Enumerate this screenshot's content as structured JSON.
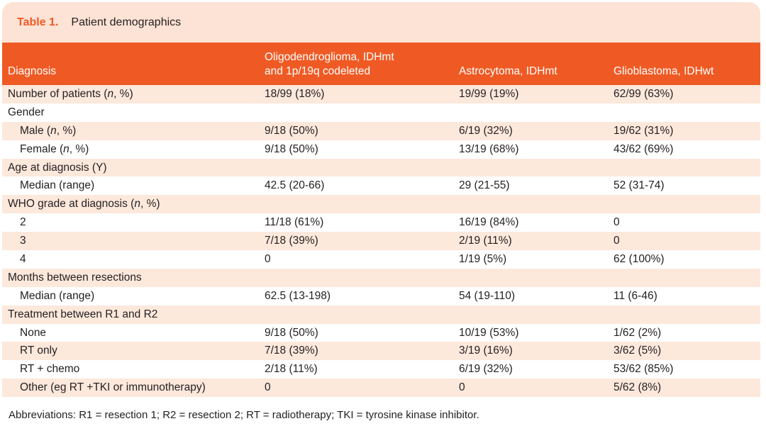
{
  "caption": {
    "number": "Table 1.",
    "title": "Patient demographics"
  },
  "header": {
    "col1": "Diagnosis",
    "col2_line1": "Oligodendroglioma, IDHmt",
    "col2_line2": "and 1p/19q codeleted",
    "col3": "Astrocytoma, IDHmt",
    "col4": "Glioblastoma, IDHwt"
  },
  "rows": [
    {
      "label": "Number of patients (",
      "italic": "n",
      "label_tail": ", %)",
      "indent": false,
      "v1": "18/99 (18%)",
      "v2": "19/99 (19%)",
      "v3": "62/99 (63%)"
    },
    {
      "label": "Gender",
      "italic": "",
      "label_tail": "",
      "indent": false,
      "v1": "",
      "v2": "",
      "v3": ""
    },
    {
      "label": "Male (",
      "italic": "n",
      "label_tail": ", %)",
      "indent": true,
      "v1": "9/18 (50%)",
      "v2": "6/19 (32%)",
      "v3": "19/62 (31%)"
    },
    {
      "label": "Female (",
      "italic": "n",
      "label_tail": ", %)",
      "indent": true,
      "v1": "9/18 (50%)",
      "v2": "13/19 (68%)",
      "v3": "43/62 (69%)"
    },
    {
      "label": "Age at diagnosis (Y)",
      "italic": "",
      "label_tail": "",
      "indent": false,
      "v1": "",
      "v2": "",
      "v3": ""
    },
    {
      "label": "Median (range)",
      "italic": "",
      "label_tail": "",
      "indent": true,
      "v1": "42.5 (20-66)",
      "v2": "29 (21-55)",
      "v3": "52 (31-74)"
    },
    {
      "label": "WHO grade at diagnosis (",
      "italic": "n",
      "label_tail": ", %)",
      "indent": false,
      "v1": "",
      "v2": "",
      "v3": ""
    },
    {
      "label": "2",
      "italic": "",
      "label_tail": "",
      "indent": true,
      "v1": "11/18 (61%)",
      "v2": "16/19 (84%)",
      "v3": "0"
    },
    {
      "label": "3",
      "italic": "",
      "label_tail": "",
      "indent": true,
      "v1": "7/18 (39%)",
      "v2": "2/19 (11%)",
      "v3": "0"
    },
    {
      "label": "4",
      "italic": "",
      "label_tail": "",
      "indent": true,
      "v1": "0",
      "v2": "1/19 (5%)",
      "v3": "62 (100%)"
    },
    {
      "label": "Months between resections",
      "italic": "",
      "label_tail": "",
      "indent": false,
      "v1": "",
      "v2": "",
      "v3": ""
    },
    {
      "label": "Median (range)",
      "italic": "",
      "label_tail": "",
      "indent": true,
      "v1": "62.5 (13-198)",
      "v2": "54 (19-110)",
      "v3": "11 (6-46)"
    },
    {
      "label": "Treatment between R1 and R2",
      "italic": "",
      "label_tail": "",
      "indent": false,
      "v1": "",
      "v2": "",
      "v3": ""
    },
    {
      "label": "None",
      "italic": "",
      "label_tail": "",
      "indent": true,
      "v1": "9/18 (50%)",
      "v2": "10/19 (53%)",
      "v3": "1/62 (2%)"
    },
    {
      "label": "RT only",
      "italic": "",
      "label_tail": "",
      "indent": true,
      "v1": "7/18 (39%)",
      "v2": "3/19 (16%)",
      "v3": "3/62 (5%)"
    },
    {
      "label": "RT + chemo",
      "italic": "",
      "label_tail": "",
      "indent": true,
      "v1": "2/18 (11%)",
      "v2": "6/19 (32%)",
      "v3": "53/62 (85%)"
    },
    {
      "label": "Other (eg RT +TKI or immunotherapy)",
      "italic": "",
      "label_tail": "",
      "indent": true,
      "v1": "0",
      "v2": "0",
      "v3": "5/62 (8%)"
    }
  ],
  "footnote": "Abbreviations: R1 = resection 1; R2 = resection 2; RT = radiotherapy; TKI = tyrosine kinase inhibitor.",
  "colors": {
    "accent": "#ef5a24",
    "caption_bg": "#fde3d5",
    "band": "#fde8dc",
    "text": "#231f20"
  }
}
